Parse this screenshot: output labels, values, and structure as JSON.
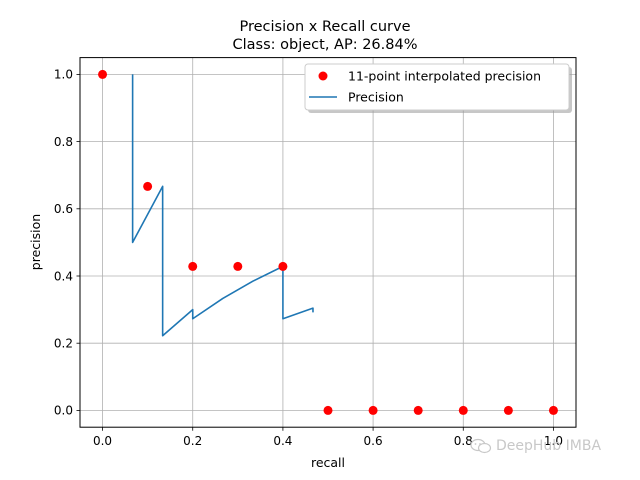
{
  "chart_data": {
    "type": "line",
    "title": "Precision x Recall curve",
    "subtitle": "Class: object, AP: 26.84%",
    "xlabel": "recall",
    "ylabel": "precision",
    "xlim": [
      -0.05,
      1.05
    ],
    "ylim": [
      -0.05,
      1.05
    ],
    "grid": true,
    "legend_position": "top-right",
    "xticks": [
      "0.0",
      "0.2",
      "0.4",
      "0.6",
      "0.8",
      "1.0"
    ],
    "yticks": [
      "0.0",
      "0.2",
      "0.4",
      "0.6",
      "0.8",
      "1.0"
    ],
    "series": [
      {
        "name": "11-point interpolated precision",
        "kind": "scatter",
        "color": "#ff0000",
        "x": [
          0.0,
          0.1,
          0.2,
          0.3,
          0.4,
          0.5,
          0.6,
          0.7,
          0.8,
          0.9,
          1.0
        ],
        "y": [
          1.0,
          0.6667,
          0.4286,
          0.4286,
          0.4286,
          0.0,
          0.0,
          0.0,
          0.0,
          0.0,
          0.0
        ]
      },
      {
        "name": "Precision",
        "kind": "line",
        "color": "#1f77b4",
        "x": [
          0.0667,
          0.0667,
          0.1333,
          0.1333,
          0.2,
          0.2,
          0.2667,
          0.3333,
          0.4,
          0.4,
          0.4667,
          0.4667
        ],
        "y": [
          1.0,
          0.5,
          0.6667,
          0.2222,
          0.3,
          0.2727,
          0.3333,
          0.3846,
          0.4286,
          0.2727,
          0.3043,
          0.2917
        ]
      }
    ]
  },
  "watermark": {
    "text": "DeepHub IMBA",
    "icon": "wechat-icon"
  }
}
